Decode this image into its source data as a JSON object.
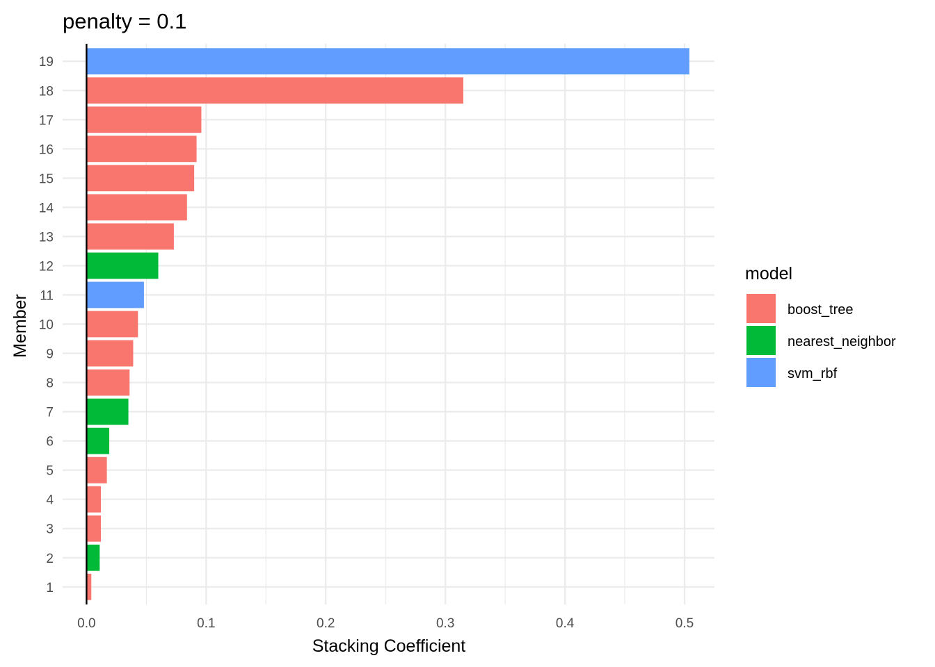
{
  "chart_data": {
    "type": "bar",
    "orientation": "horizontal",
    "title": "penalty = 0.1",
    "xlabel": "Stacking Coefficient",
    "ylabel": "Member",
    "xlim": [
      -0.02,
      0.525
    ],
    "x_ticks": [
      0.0,
      0.1,
      0.2,
      0.3,
      0.4,
      0.5
    ],
    "x_tick_labels": [
      "0.0",
      "0.1",
      "0.2",
      "0.3",
      "0.4",
      "0.5"
    ],
    "grid": true,
    "legend_position": "right",
    "legend": {
      "title": "model",
      "entries": [
        {
          "label": "boost_tree",
          "color": "#F8766D"
        },
        {
          "label": "nearest_neighbor",
          "color": "#00BA38"
        },
        {
          "label": "svm_rbf",
          "color": "#619CFF"
        }
      ]
    },
    "members": [
      "1",
      "2",
      "3",
      "4",
      "5",
      "6",
      "7",
      "8",
      "9",
      "10",
      "11",
      "12",
      "13",
      "14",
      "15",
      "16",
      "17",
      "18",
      "19"
    ],
    "values": [
      0.004,
      0.011,
      0.012,
      0.012,
      0.017,
      0.019,
      0.035,
      0.036,
      0.039,
      0.043,
      0.048,
      0.06,
      0.073,
      0.084,
      0.09,
      0.092,
      0.096,
      0.315,
      0.504
    ],
    "models": [
      "boost_tree",
      "nearest_neighbor",
      "boost_tree",
      "boost_tree",
      "boost_tree",
      "nearest_neighbor",
      "nearest_neighbor",
      "boost_tree",
      "boost_tree",
      "boost_tree",
      "svm_rbf",
      "nearest_neighbor",
      "boost_tree",
      "boost_tree",
      "boost_tree",
      "boost_tree",
      "boost_tree",
      "boost_tree",
      "svm_rbf"
    ]
  }
}
